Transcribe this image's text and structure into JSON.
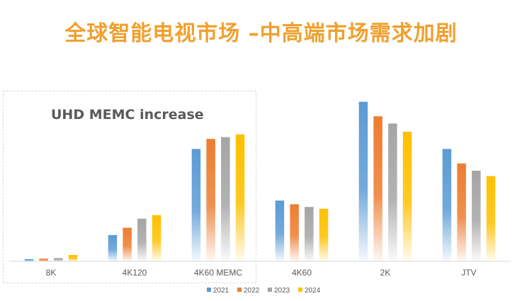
{
  "title": "全球智能电视市场 –中高端市场需求加剧",
  "annotation": "UHD MEMC increase",
  "chart_data": {
    "type": "bar",
    "categories": [
      "8K",
      "4K120",
      "4K60 MEMC",
      "4K60",
      "2K",
      "JTV"
    ],
    "series": [
      {
        "name": "2021",
        "color": "#5B9BD5",
        "values": [
          1.2,
          14.5,
          62.0,
          33.5,
          88.0,
          62.0
        ]
      },
      {
        "name": "2022",
        "color": "#ED7D31",
        "values": [
          1.5,
          18.5,
          67.5,
          31.5,
          80.0,
          54.0
        ]
      },
      {
        "name": "2023",
        "color": "#A5A5A5",
        "values": [
          1.8,
          23.5,
          68.5,
          30.0,
          76.0,
          50.0
        ]
      },
      {
        "name": "2024",
        "color": "#FFC000",
        "values": [
          3.5,
          25.5,
          70.0,
          29.0,
          71.5,
          47.0
        ]
      }
    ],
    "ylim": [
      0,
      100
    ],
    "grid": false,
    "legend": "bottom"
  }
}
